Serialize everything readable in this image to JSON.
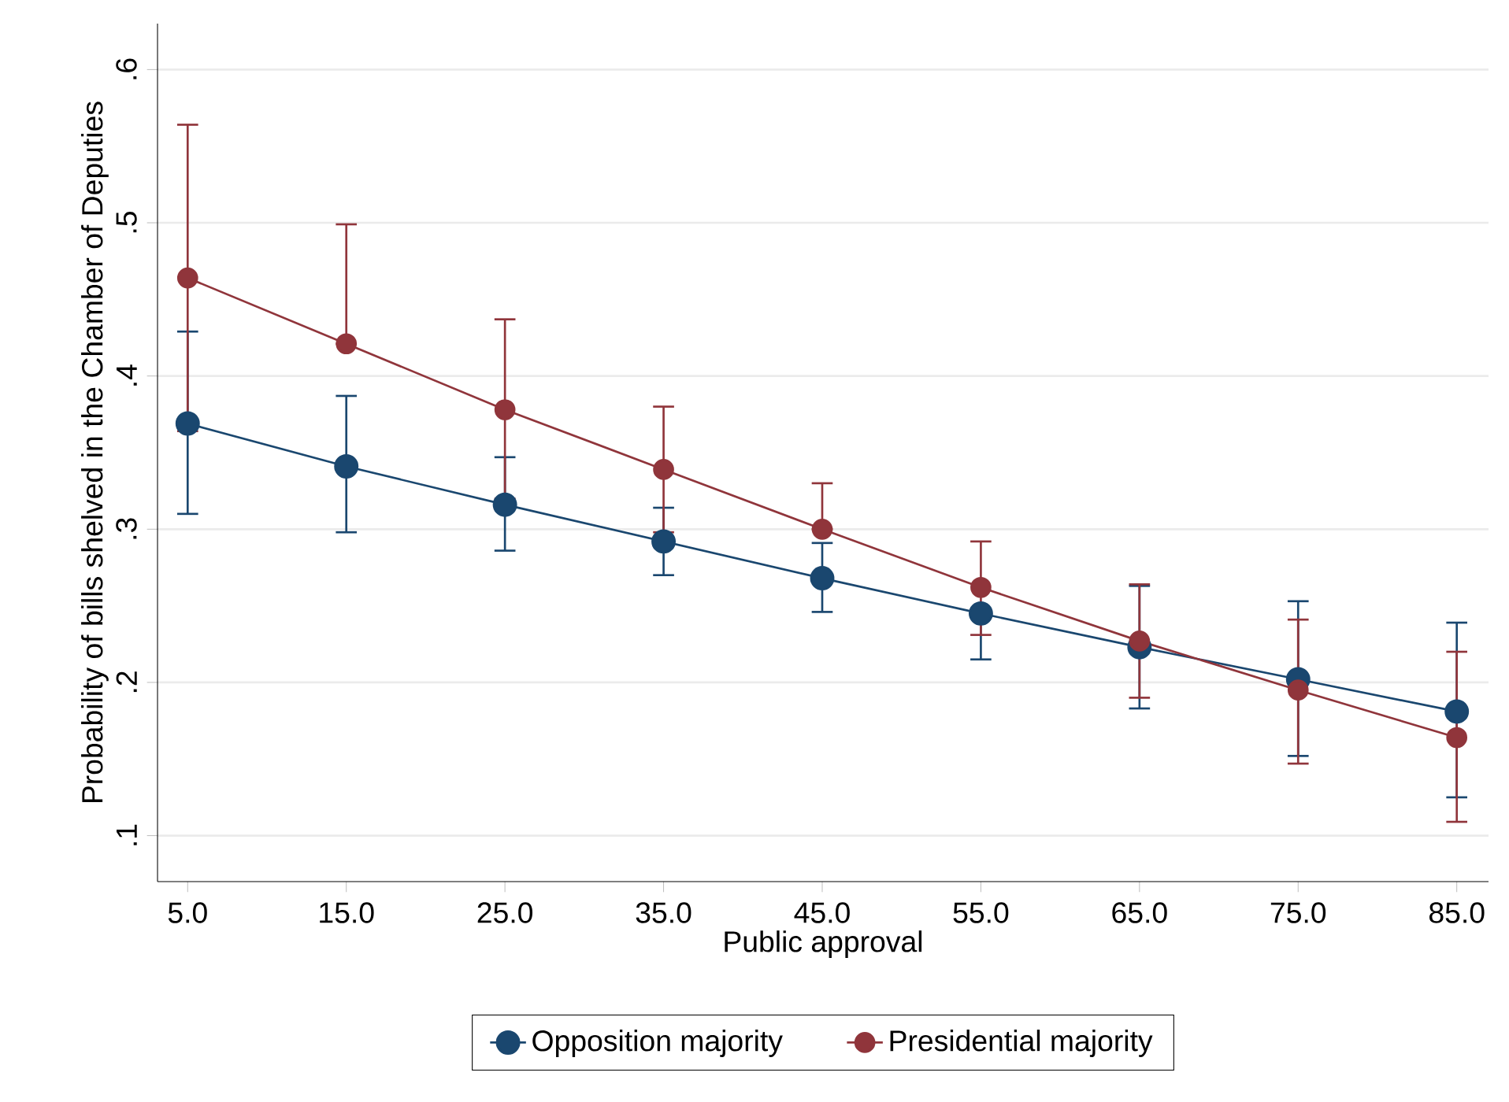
{
  "chart_data": {
    "type": "line",
    "xlabel": "Public approval",
    "ylabel": "Probability of bills shelved in the Chamber of Deputies",
    "x": [
      5,
      15,
      25,
      35,
      45,
      55,
      65,
      75,
      85
    ],
    "series": [
      {
        "name": "Opposition majority",
        "color": "#1a476f",
        "values": [
          0.369,
          0.341,
          0.316,
          0.292,
          0.268,
          0.245,
          0.223,
          0.202,
          0.181
        ],
        "errors": [
          [
            0.31,
            0.429
          ],
          [
            0.298,
            0.387
          ],
          [
            0.286,
            0.347
          ],
          [
            0.27,
            0.314
          ],
          [
            0.246,
            0.291
          ],
          [
            0.215,
            0.245
          ],
          [
            0.183,
            0.263
          ],
          [
            0.152,
            0.253
          ],
          [
            0.125,
            0.239
          ]
        ]
      },
      {
        "name": "Presidential majority",
        "color": "#90353b",
        "values": [
          0.464,
          0.421,
          0.378,
          0.339,
          0.3,
          0.262,
          0.227,
          0.195,
          0.164
        ],
        "errors": [
          [
            0.364,
            0.564
          ],
          [
            0.421,
            0.499
          ],
          [
            0.32,
            0.437
          ],
          [
            0.298,
            0.38
          ],
          [
            0.3,
            0.33
          ],
          [
            0.231,
            0.292
          ],
          [
            0.19,
            0.264
          ],
          [
            0.147,
            0.241
          ],
          [
            0.109,
            0.22
          ]
        ]
      }
    ],
    "xlim": [
      3.1,
      87
    ],
    "ylim": [
      0.07,
      0.63
    ],
    "xticks": [
      {
        "value": 5,
        "label": "5.0"
      },
      {
        "value": 15,
        "label": "15.0"
      },
      {
        "value": 25,
        "label": "25.0"
      },
      {
        "value": 35,
        "label": "35.0"
      },
      {
        "value": 45,
        "label": "45.0"
      },
      {
        "value": 55,
        "label": "55.0"
      },
      {
        "value": 65,
        "label": "65.0"
      },
      {
        "value": 75,
        "label": "75.0"
      },
      {
        "value": 85,
        "label": "85.0"
      }
    ],
    "yticks": [
      {
        "value": 0.1,
        "label": ".1"
      },
      {
        "value": 0.2,
        "label": ".2"
      },
      {
        "value": 0.3,
        "label": ".3"
      },
      {
        "value": 0.4,
        "label": ".4"
      },
      {
        "value": 0.5,
        "label": ".5"
      },
      {
        "value": 0.6,
        "label": ".6"
      }
    ],
    "grid": "y",
    "legend": "bottom",
    "marker": "circle",
    "line_style": "solid"
  }
}
